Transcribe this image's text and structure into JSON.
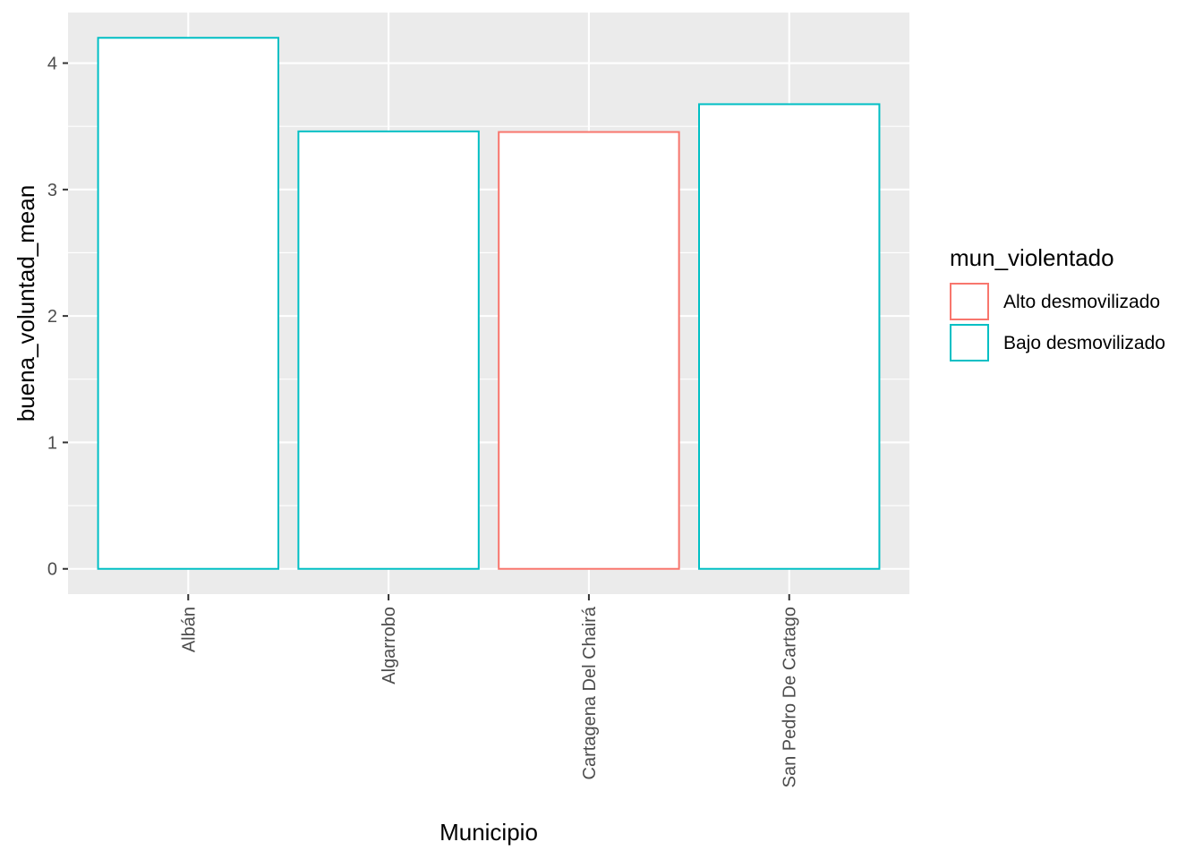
{
  "chart_data": {
    "type": "bar",
    "xlabel": "Municipio",
    "ylabel": "buena_voluntad_mean",
    "categories": [
      "Albán",
      "Algarrobo",
      "Cartagena Del Chairá",
      "San Pedro De Cartago"
    ],
    "values": [
      4.2,
      3.46,
      3.455,
      3.675
    ],
    "groups": [
      "Bajo desmovilizado",
      "Bajo desmovilizado",
      "Alto desmovilizado",
      "Bajo desmovilizado"
    ],
    "ylim": [
      -0.2,
      4.4
    ],
    "yticks": [
      0,
      1,
      2,
      3,
      4
    ],
    "grid": true,
    "legend": {
      "title": "mun_violentado",
      "placement": "right",
      "entries": [
        {
          "label": "Alto desmovilizado",
          "color": "#F8766D"
        },
        {
          "label": "Bajo desmovilizado",
          "color": "#00BFC4"
        }
      ]
    }
  },
  "colors": {
    "panel_background": "#EBEBEB",
    "grid_line": "#FFFFFF",
    "bar_fill": "#FFFFFF"
  }
}
